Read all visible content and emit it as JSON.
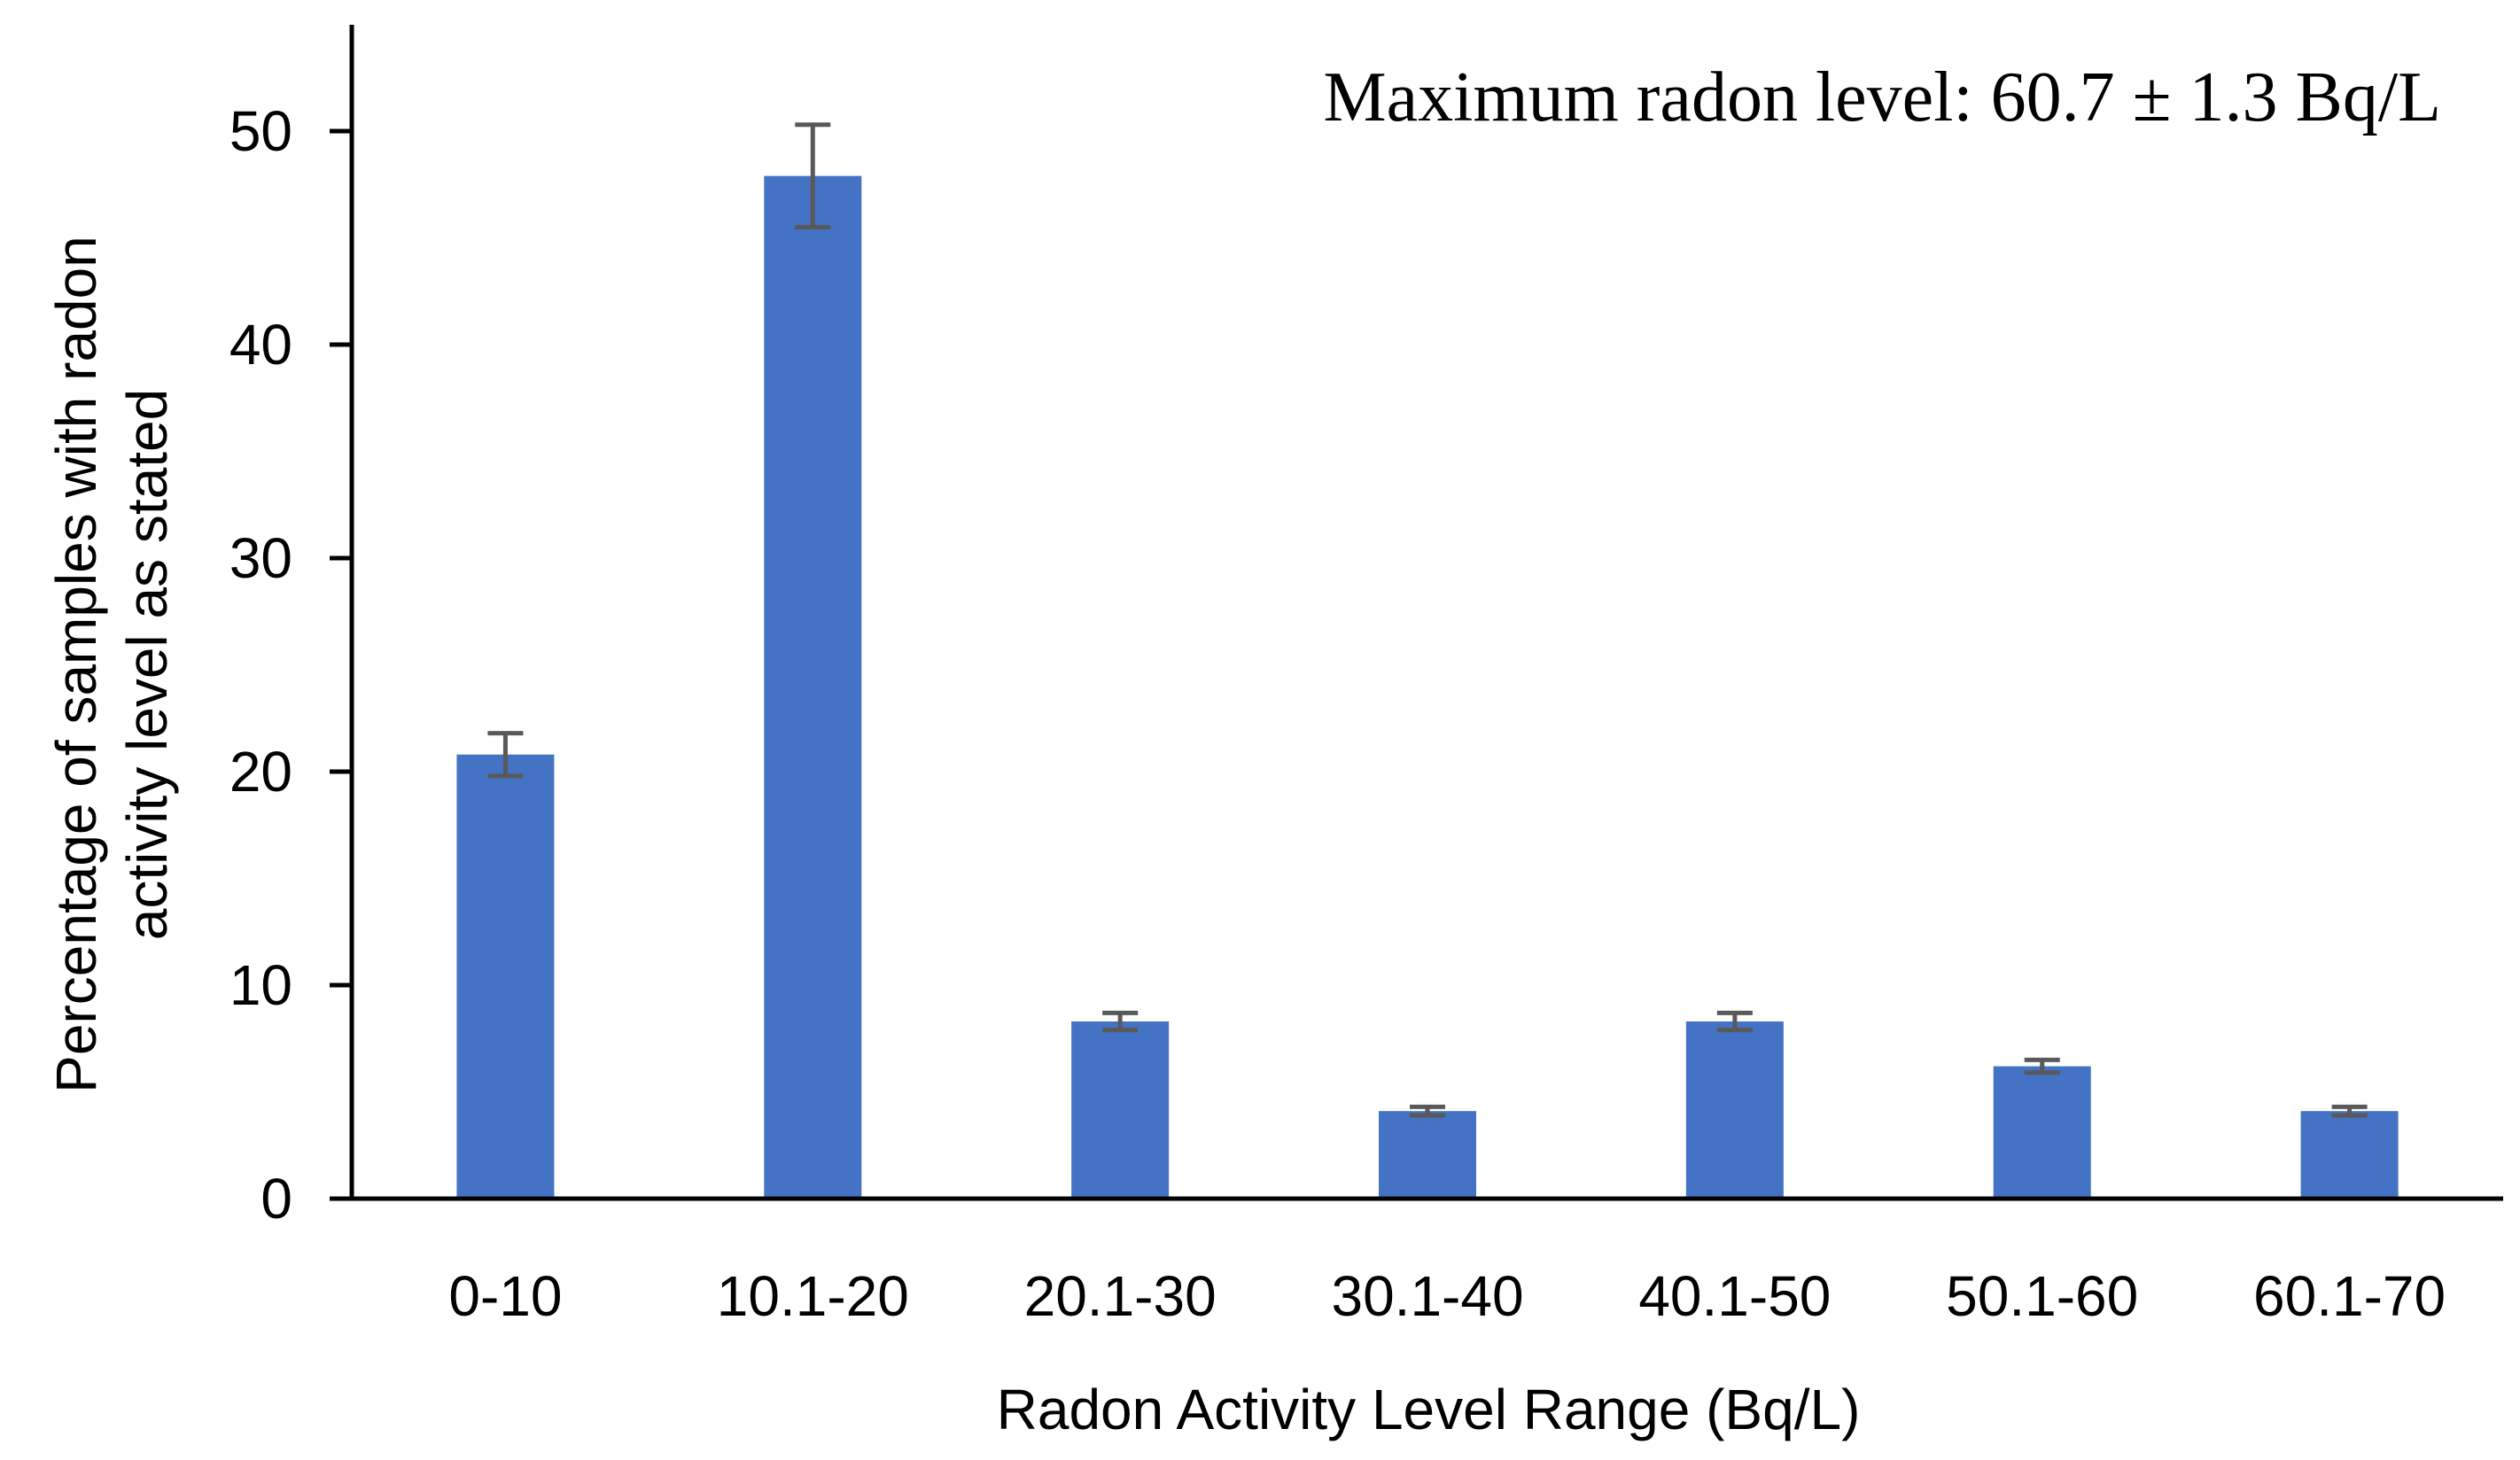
{
  "chart_data": {
    "type": "bar",
    "categories": [
      "0-10",
      "10.1-20",
      "20.1-30",
      "30.1-40",
      "40.1-50",
      "50.1-60",
      "60.1-70"
    ],
    "values": [
      20.8,
      47.9,
      8.3,
      4.1,
      8.3,
      6.2,
      4.1
    ],
    "errors": [
      1.0,
      2.4,
      0.4,
      0.2,
      0.4,
      0.3,
      0.2
    ],
    "title": "",
    "xlabel": "Radon Activity Level Range (Bq/L)",
    "ylabel_lines": [
      "Percentage of samples with radon",
      "activity level as stated"
    ],
    "ylim": [
      0,
      55
    ],
    "yticks": [
      0,
      10,
      20,
      30,
      40,
      50
    ],
    "grid": false,
    "bar_color": "#4472C4",
    "error_bar_color": "#595959",
    "annotation": "Maximum radon level: 60.7 ± 1.3 Bq/L"
  }
}
